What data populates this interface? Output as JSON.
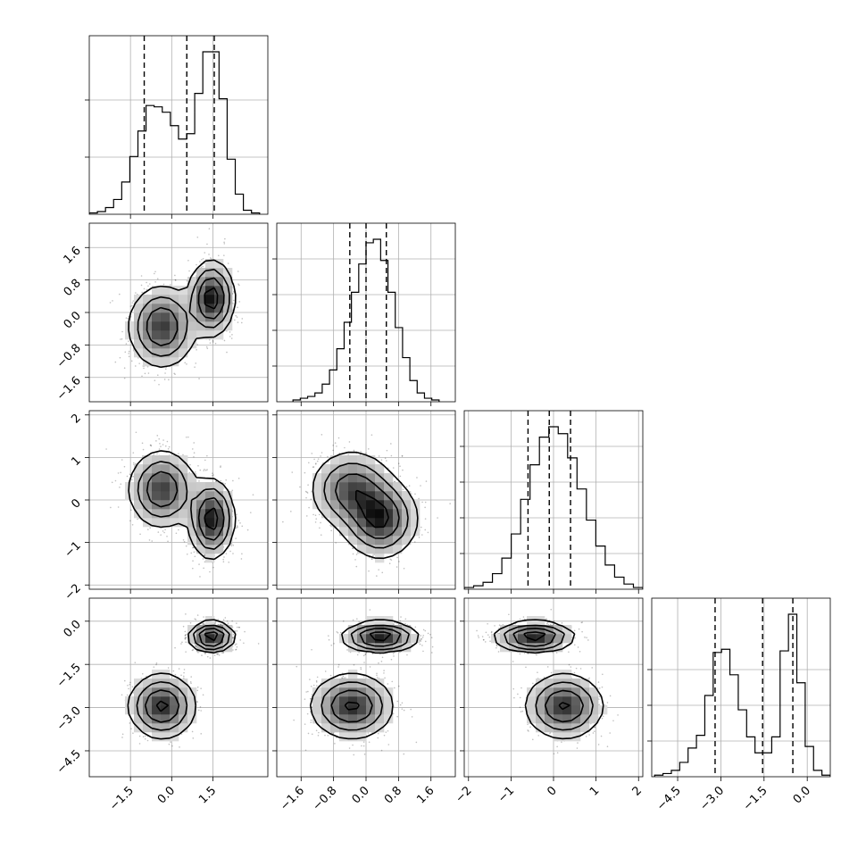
{
  "chart_data": {
    "type": "corner",
    "parameters": [
      {
        "axis_range": [
          -3.0,
          3.5
        ],
        "hist_range": [
          -3.0,
          3.2
        ],
        "ticks": [
          -1.5,
          0.0,
          1.5
        ],
        "tick_labels": [
          "−1.5",
          "0.0",
          "1.5"
        ],
        "quantiles": [
          -1.0,
          0.55,
          1.55
        ],
        "hist_counts": [
          1,
          2,
          5,
          11,
          24,
          43,
          62,
          81,
          80,
          76,
          66,
          56,
          60,
          90,
          121,
          121,
          86,
          41,
          15,
          3,
          1
        ]
      },
      {
        "axis_range": [
          -2.2,
          2.2
        ],
        "hist_range": [
          -1.8,
          1.8
        ],
        "ticks": [
          -1.6,
          -0.8,
          0.0,
          0.8,
          1.6
        ],
        "tick_labels": [
          "−1.6",
          "−0.8",
          "0.0",
          "0.8",
          "1.6"
        ],
        "quantiles": [
          -0.4,
          0.0,
          0.5
        ],
        "hist_counts": [
          1,
          2,
          3,
          5,
          10,
          18,
          30,
          45,
          62,
          78,
          90,
          92,
          80,
          62,
          42,
          25,
          12,
          5,
          2,
          1
        ]
      },
      {
        "axis_range": [
          -2.1,
          2.1
        ],
        "hist_range": [
          -2.1,
          2.1
        ],
        "ticks": [
          -2,
          -1,
          0,
          1,
          2
        ],
        "tick_labels": [
          "−2",
          "−1",
          "0",
          "1",
          "2"
        ],
        "quantiles": [
          -0.6,
          -0.1,
          0.4
        ],
        "hist_counts": [
          1,
          2,
          4,
          9,
          18,
          32,
          52,
          72,
          88,
          94,
          90,
          76,
          58,
          40,
          25,
          14,
          7,
          3,
          1
        ]
      },
      {
        "axis_range": [
          -5.4,
          0.8
        ],
        "hist_range": [
          -5.3,
          0.8
        ],
        "ticks": [
          -4.5,
          -3.0,
          -1.5,
          0.0
        ],
        "tick_labels": [
          "−4.5",
          "−3.0",
          "−1.5",
          "0.0"
        ],
        "quantiles": [
          -3.2,
          -1.55,
          -0.5
        ],
        "hist_counts": [
          1,
          2,
          4,
          9,
          18,
          26,
          51,
          78,
          80,
          64,
          42,
          25,
          15,
          15,
          25,
          79,
          102,
          59,
          19,
          4,
          1
        ]
      }
    ],
    "hist_ticks": [
      [
        0.32,
        0.64
      ],
      [
        0.2,
        0.4,
        0.6,
        0.8
      ],
      [
        0.2,
        0.4,
        0.6,
        0.8
      ],
      [
        0.2,
        0.4,
        0.6
      ]
    ],
    "modes": [
      {
        "weight": 0.45,
        "mean": [
          -0.35,
          -0.35,
          0.25,
          -2.95
        ],
        "sd": [
          0.6,
          0.5,
          0.45,
          0.55
        ]
      },
      {
        "weight": 0.55,
        "mean": [
          1.45,
          0.35,
          -0.45,
          -0.55
        ],
        "sd": [
          0.4,
          0.45,
          0.45,
          0.25
        ]
      }
    ],
    "contour_levels": [
      0.12,
      0.3,
      0.55,
      0.85
    ],
    "density_grid": 20,
    "grid": true,
    "xlabel": "",
    "ylabel": "",
    "title": ""
  }
}
